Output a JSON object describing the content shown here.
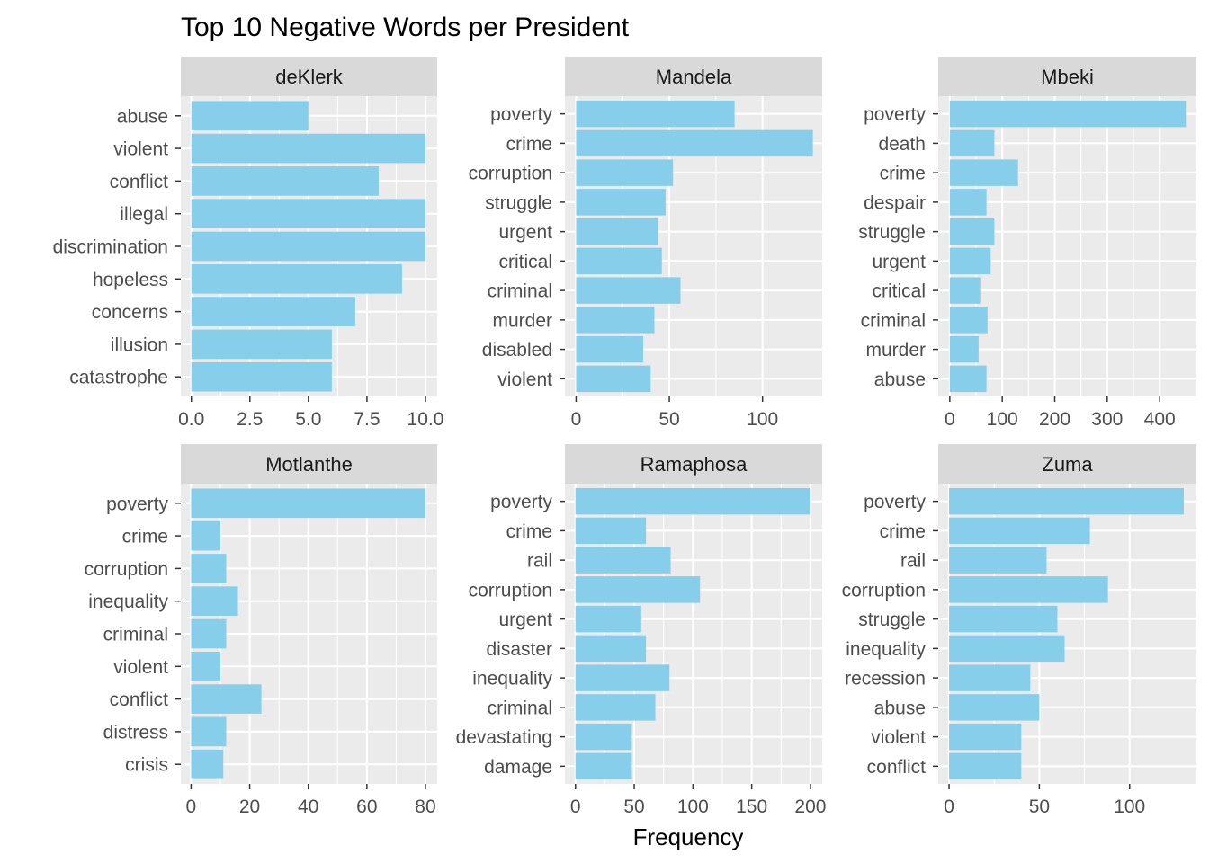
{
  "chart_data": {
    "type": "bar",
    "title": "Top 10 Negative Words per President",
    "xlabel": "Frequency",
    "ylabel": "",
    "orientation": "horizontal",
    "grid": true,
    "colors": {
      "bar": "#87CEEB",
      "panel": "#EBEBEB",
      "strip": "#D9D9D9",
      "grid": "#FFFFFF",
      "text": "#4D4D4D",
      "title": "#000000"
    },
    "panels": [
      {
        "name": "deKlerk",
        "categories": [
          "abuse",
          "violent",
          "conflict",
          "illegal",
          "discrimination",
          "hopeless",
          "concerns",
          "illusion",
          "catastrophe"
        ],
        "values": [
          5,
          10,
          8,
          10,
          10,
          9,
          7,
          6,
          6
        ],
        "xlim": [
          -0.45,
          10.5
        ],
        "ticks": [
          0,
          2.5,
          5,
          7.5,
          10
        ],
        "tick_labels": [
          "0.0",
          "2.5",
          "5.0",
          "7.5",
          "10.0"
        ]
      },
      {
        "name": "Mandela",
        "categories": [
          "poverty",
          "crime",
          "corruption",
          "struggle",
          "urgent",
          "critical",
          "criminal",
          "murder",
          "disabled",
          "violent"
        ],
        "values": [
          85,
          127,
          52,
          48,
          44,
          46,
          56,
          42,
          36,
          40
        ],
        "xlim": [
          -6,
          132
        ],
        "ticks": [
          0,
          50,
          100
        ],
        "tick_labels": [
          "0",
          "50",
          "100"
        ]
      },
      {
        "name": "Mbeki",
        "categories": [
          "poverty",
          "death",
          "crime",
          "despair",
          "struggle",
          "urgent",
          "critical",
          "criminal",
          "murder",
          "abuse"
        ],
        "values": [
          450,
          85,
          130,
          70,
          85,
          78,
          58,
          72,
          55,
          70
        ],
        "xlim": [
          -22,
          470
        ],
        "ticks": [
          0,
          100,
          200,
          300,
          400
        ],
        "tick_labels": [
          "0",
          "100",
          "200",
          "300",
          "400"
        ]
      },
      {
        "name": "Motlanthe",
        "categories": [
          "poverty",
          "crime",
          "corruption",
          "inequality",
          "criminal",
          "violent",
          "conflict",
          "distress",
          "crisis"
        ],
        "values": [
          80,
          10,
          12,
          16,
          12,
          10,
          24,
          12,
          11
        ],
        "xlim": [
          -3.5,
          84
        ],
        "ticks": [
          0,
          20,
          40,
          60,
          80
        ],
        "tick_labels": [
          "0",
          "20",
          "40",
          "60",
          "80"
        ]
      },
      {
        "name": "Ramaphosa",
        "categories": [
          "poverty",
          "crime",
          "rail",
          "corruption",
          "urgent",
          "disaster",
          "inequality",
          "criminal",
          "devastating",
          "damage"
        ],
        "values": [
          200,
          60,
          81,
          106,
          56,
          60,
          80,
          68,
          48,
          48
        ],
        "xlim": [
          -9,
          210
        ],
        "ticks": [
          0,
          50,
          100,
          150,
          200
        ],
        "tick_labels": [
          "0",
          "50",
          "100",
          "150",
          "200"
        ]
      },
      {
        "name": "Zuma",
        "categories": [
          "poverty",
          "crime",
          "rail",
          "corruption",
          "struggle",
          "inequality",
          "recession",
          "abuse",
          "violent",
          "conflict"
        ],
        "values": [
          130,
          78,
          54,
          88,
          60,
          64,
          45,
          50,
          40,
          40
        ],
        "xlim": [
          -6,
          137
        ],
        "ticks": [
          0,
          50,
          100
        ],
        "tick_labels": [
          "0",
          "50",
          "100"
        ]
      }
    ]
  }
}
